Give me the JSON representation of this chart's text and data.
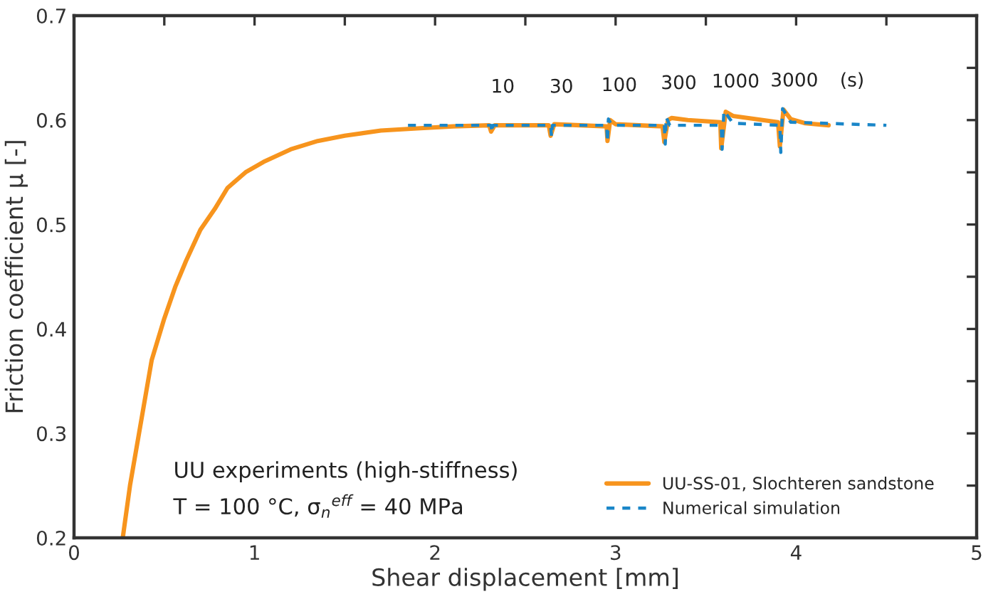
{
  "chart_data": {
    "type": "line",
    "xlabel": "Shear displacement [mm]",
    "ylabel": "Friction coefficient μ [-]",
    "xlim": [
      0,
      5
    ],
    "ylim": [
      0.2,
      0.7
    ],
    "xticks": [
      0,
      {
        "value": 0.5,
        "label": null
      },
      1,
      {
        "value": 1.5,
        "label": null
      },
      2,
      {
        "value": 2.5,
        "label": null
      },
      3,
      {
        "value": 3.5,
        "label": null
      },
      4,
      {
        "value": 4.5,
        "label": null
      },
      5
    ],
    "yticks": [
      0.2,
      {
        "value": 0.25,
        "label": null
      },
      0.3,
      {
        "value": 0.35,
        "label": null
      },
      0.4,
      {
        "value": 0.45,
        "label": null
      },
      0.5,
      {
        "value": 0.55,
        "label": null
      },
      0.6,
      {
        "value": 0.65,
        "label": null
      },
      0.7
    ],
    "grid": false,
    "legend": "bottom right",
    "series": [
      {
        "name": "UU-SS-01, Slochteren sandstone",
        "color": "#f7941d",
        "line_style": "solid",
        "x": [
          0.27,
          0.31,
          0.36,
          0.4,
          0.43,
          0.5,
          0.56,
          0.62,
          0.7,
          0.78,
          0.85,
          0.95,
          1.05,
          1.2,
          1.35,
          1.5,
          1.7,
          1.9,
          2.1,
          2.3,
          2.31,
          2.33,
          2.63,
          2.64,
          2.66,
          2.95,
          2.955,
          2.97,
          3.0,
          3.26,
          3.27,
          3.29,
          3.31,
          3.4,
          3.58,
          3.585,
          3.61,
          3.65,
          3.9,
          3.91,
          3.93,
          3.97,
          4.05,
          4.18
        ],
        "values": [
          0.2,
          0.25,
          0.3,
          0.34,
          0.37,
          0.41,
          0.44,
          0.465,
          0.495,
          0.515,
          0.535,
          0.55,
          0.56,
          0.572,
          0.58,
          0.585,
          0.59,
          0.592,
          0.594,
          0.595,
          0.589,
          0.595,
          0.595,
          0.585,
          0.596,
          0.594,
          0.58,
          0.6,
          0.596,
          0.594,
          0.579,
          0.6,
          0.602,
          0.6,
          0.598,
          0.573,
          0.608,
          0.604,
          0.598,
          0.575,
          0.61,
          0.601,
          0.597,
          0.595
        ]
      },
      {
        "name": "Numerical simulation",
        "color": "#1a86c8",
        "line_style": "dashed",
        "x": [
          1.85,
          2.31,
          2.315,
          2.32,
          2.64,
          2.645,
          2.65,
          2.95,
          2.955,
          2.96,
          2.98,
          3.27,
          3.275,
          3.28,
          3.3,
          3.585,
          3.59,
          3.6,
          3.65,
          3.91,
          3.915,
          3.925,
          3.97,
          4.5
        ],
        "values": [
          0.595,
          0.595,
          0.588,
          0.595,
          0.595,
          0.584,
          0.595,
          0.595,
          0.579,
          0.601,
          0.595,
          0.595,
          0.577,
          0.603,
          0.595,
          0.595,
          0.572,
          0.609,
          0.597,
          0.595,
          0.569,
          0.611,
          0.598,
          0.595
        ]
      }
    ],
    "annotations": [
      "10",
      "30",
      "100",
      "300",
      "1000",
      "3000",
      "(s)",
      "UU experiments (high-stiffness)",
      "T = 100 °C, σ$_{n}$$^{eff}$ = 40 MPa"
    ]
  }
}
